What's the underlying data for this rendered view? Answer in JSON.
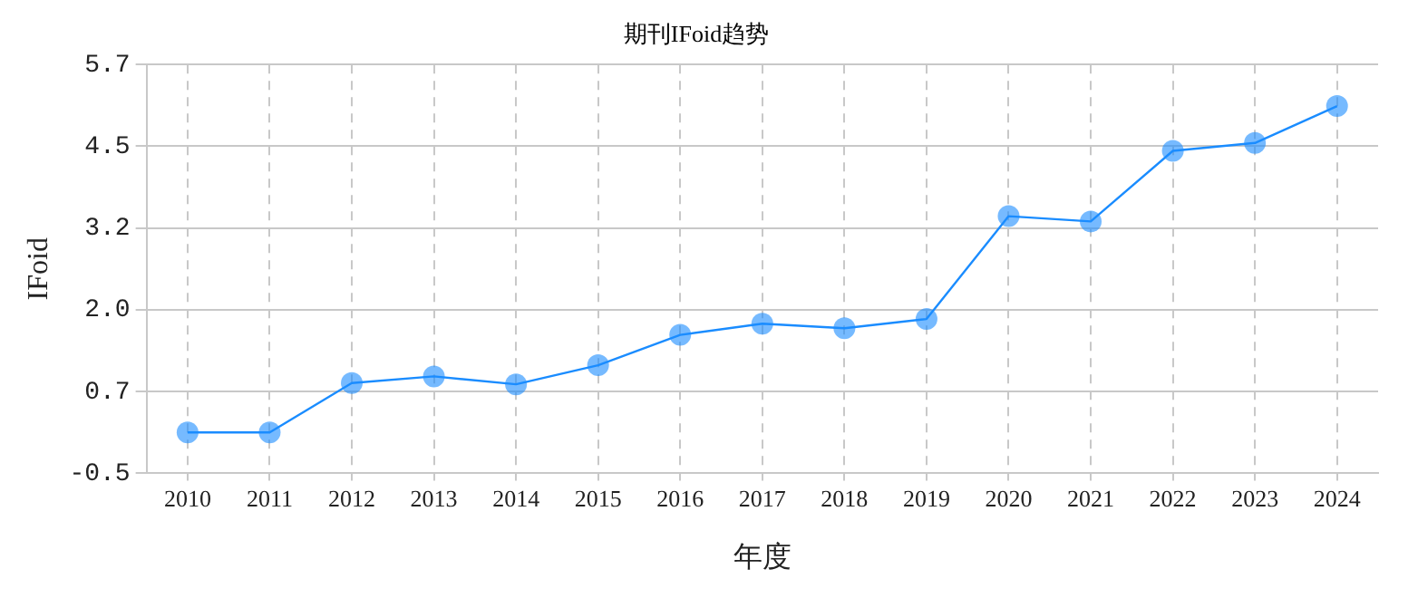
{
  "chart_data": {
    "type": "line",
    "title": "期刊IFoid趋势",
    "xlabel": "年度",
    "ylabel": "IFoid",
    "categories": [
      "2010",
      "2011",
      "2012",
      "2013",
      "2014",
      "2015",
      "2016",
      "2017",
      "2018",
      "2019",
      "2020",
      "2021",
      "2022",
      "2023",
      "2024"
    ],
    "series": [
      {
        "color": "#1a8cff",
        "values": [
          0.12,
          0.12,
          0.87,
          0.97,
          0.85,
          1.14,
          1.6,
          1.77,
          1.7,
          1.84,
          3.4,
          3.32,
          4.39,
          4.51,
          5.07
        ]
      }
    ],
    "ylim": [
      -0.5,
      5.7
    ],
    "yticks": [
      {
        "value": -0.5,
        "label": "-0.5"
      },
      {
        "value": 0.74,
        "label": "0.7"
      },
      {
        "value": 1.98,
        "label": "2.0"
      },
      {
        "value": 3.22,
        "label": "3.2"
      },
      {
        "value": 4.46,
        "label": "4.5"
      },
      {
        "value": 5.7,
        "label": "5.7"
      }
    ],
    "grid": true,
    "legend": false,
    "marker": "circle",
    "line_style": "solid"
  }
}
